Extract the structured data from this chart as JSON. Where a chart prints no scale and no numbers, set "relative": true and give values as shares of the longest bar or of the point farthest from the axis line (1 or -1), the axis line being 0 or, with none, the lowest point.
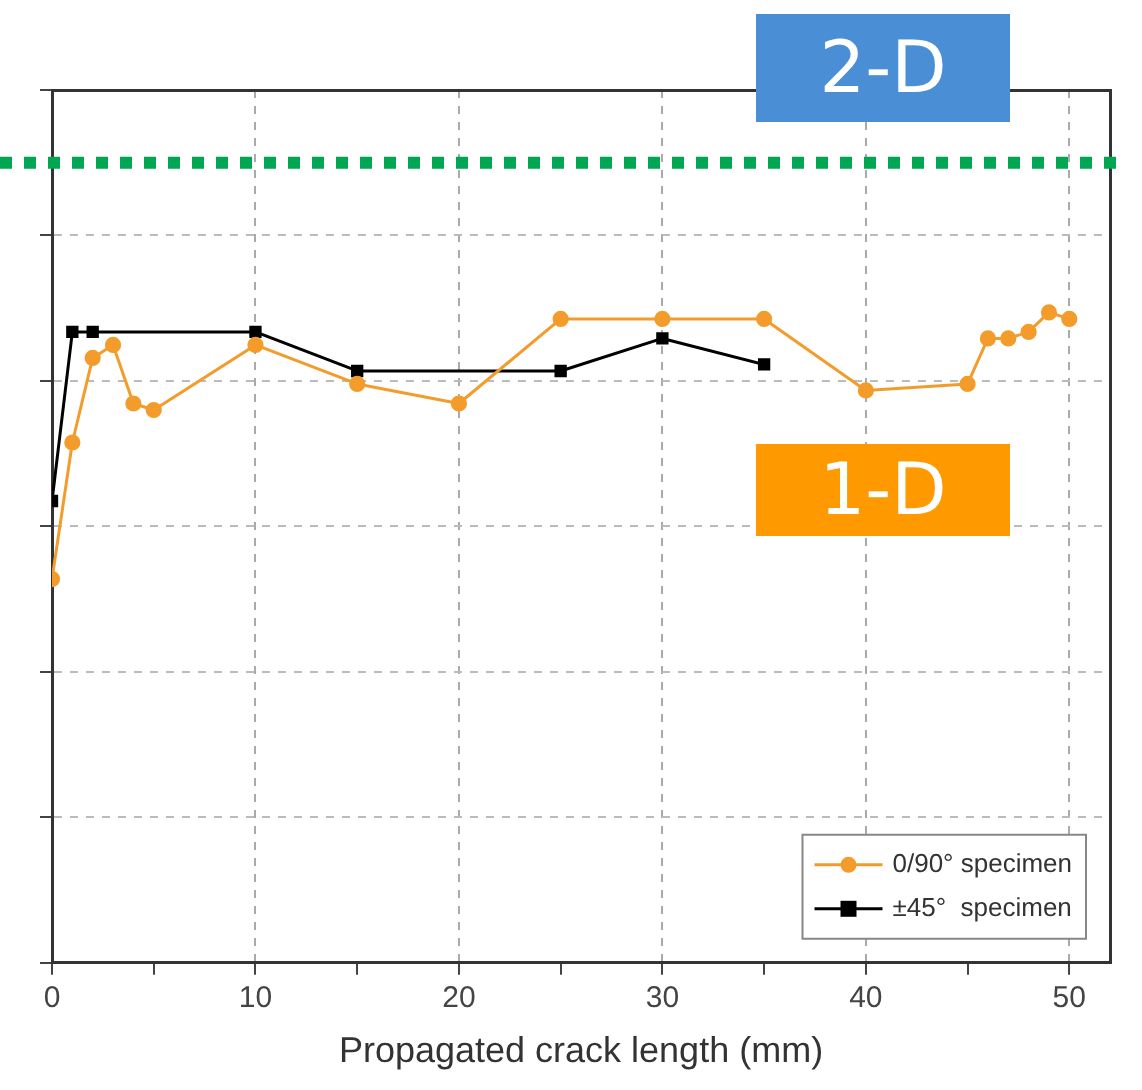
{
  "chart_data": {
    "type": "line",
    "xlabel": "Propagated crack length (mm)",
    "relative": true,
    "xlim": [
      0,
      52
    ],
    "xticks": [
      0,
      {
        "value": 5,
        "label": null
      },
      10,
      {
        "value": 15,
        "label": null
      },
      20,
      {
        "value": 25,
        "label": null
      },
      30,
      {
        "value": 35,
        "label": null
      },
      40,
      {
        "value": 45,
        "label": null
      },
      50
    ],
    "grid": true,
    "legend": "bottom right",
    "line_style": "solid",
    "series": [
      {
        "name": "0/90° specimen",
        "color": "#f39c2c",
        "marker": "circle",
        "x": [
          0,
          1,
          2,
          3,
          4,
          5,
          10,
          15,
          20,
          25,
          30,
          35,
          40,
          45,
          46,
          47,
          48,
          49,
          50
        ],
        "values": [
          0.59,
          0.8,
          0.93,
          0.95,
          0.86,
          0.85,
          0.95,
          0.89,
          0.86,
          0.99,
          0.99,
          0.99,
          0.88,
          0.89,
          0.96,
          0.96,
          0.97,
          1,
          0.99
        ]
      },
      {
        "name": "±45°  specimen",
        "color": "#000000",
        "marker": "square",
        "x": [
          0,
          1,
          2,
          10,
          15,
          25,
          30,
          35
        ],
        "values": [
          0.71,
          0.97,
          0.97,
          0.97,
          0.91,
          0.91,
          0.96,
          0.92
        ]
      }
    ],
    "ref_lines": [
      {
        "axis": "y",
        "value": 1.23,
        "label": "2-D",
        "color": "#00a651",
        "line_style": "dotted"
      }
    ],
    "annotations": [
      "1-D"
    ]
  }
}
